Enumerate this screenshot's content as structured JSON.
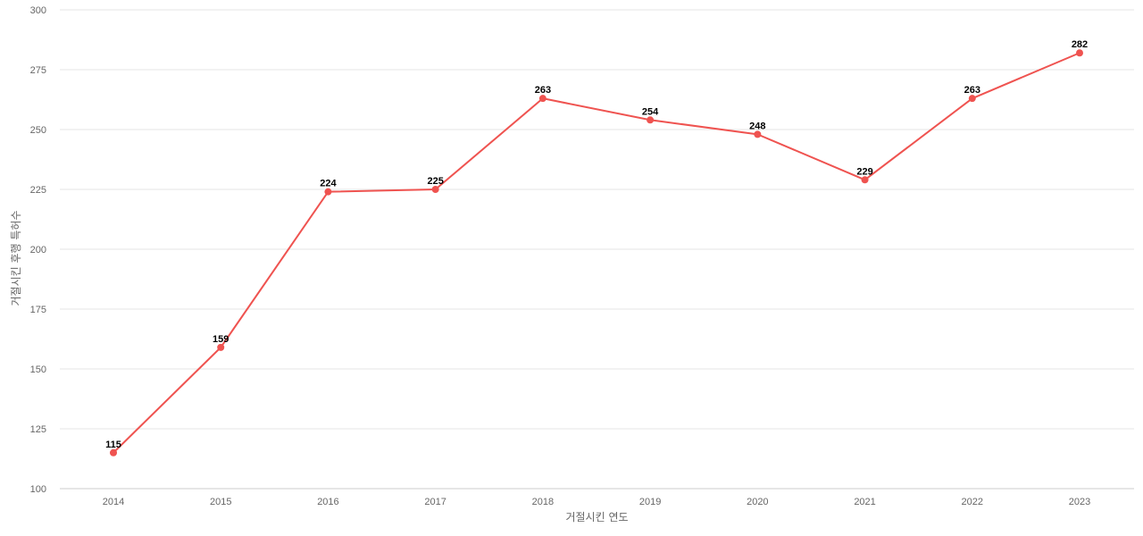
{
  "chart_data": {
    "type": "line",
    "x": [
      "2014",
      "2015",
      "2016",
      "2017",
      "2018",
      "2019",
      "2020",
      "2021",
      "2022",
      "2023"
    ],
    "series": [
      {
        "values": [
          115,
          159,
          224,
          225,
          263,
          254,
          248,
          229,
          263,
          282
        ],
        "color": "#ef5350"
      }
    ],
    "xlabel": "거절시킨 연도",
    "ylabel": "거절시킨 후행 특허수",
    "ylim": [
      100,
      300
    ],
    "yticks": [
      100,
      125,
      150,
      175,
      200,
      225,
      250,
      275,
      300
    ],
    "grid": true,
    "data_labels": true
  }
}
